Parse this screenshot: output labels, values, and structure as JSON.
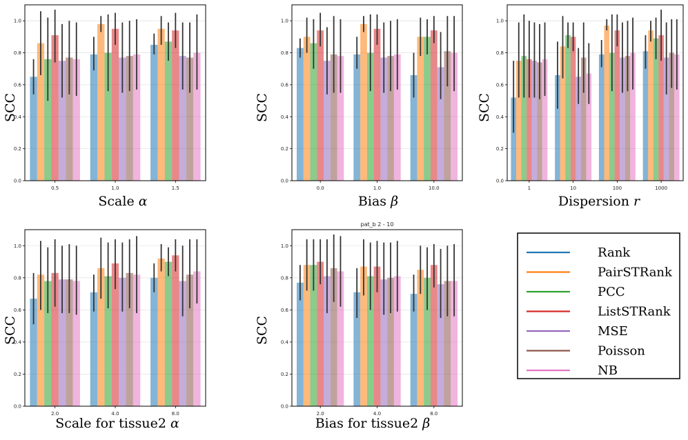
{
  "legend": [
    {
      "name": "Rank",
      "color": "#1f77b4"
    },
    {
      "name": "PairSTRank",
      "color": "#ff7f0e"
    },
    {
      "name": "PCC",
      "color": "#2ca02c"
    },
    {
      "name": "ListSTRank",
      "color": "#d62728"
    },
    {
      "name": "MSE",
      "color": "#9467bd"
    },
    {
      "name": "Poisson",
      "color": "#8c564b"
    },
    {
      "name": "NB",
      "color": "#e377c2"
    }
  ],
  "chart_data": [
    {
      "type": "bar",
      "title": "",
      "xlabel": "Scale α",
      "ylabel": "SCC",
      "ylim": [
        0,
        1.1
      ],
      "yticks": [
        "0.0",
        "0.2",
        "0.4",
        "0.6",
        "0.8",
        "1.0"
      ],
      "categories": [
        "0.5",
        "1.0",
        "1.5"
      ],
      "series": [
        {
          "name": "Rank",
          "values": [
            0.65,
            0.79,
            0.85
          ],
          "err_low": [
            0.54,
            0.69,
            0.79
          ],
          "err_high": [
            0.76,
            0.9,
            0.92
          ]
        },
        {
          "name": "PairSTRank",
          "values": [
            0.86,
            0.98,
            0.95
          ],
          "err_low": [
            0.66,
            0.93,
            0.85
          ],
          "err_high": [
            1.06,
            1.03,
            1.03
          ]
        },
        {
          "name": "PCC",
          "values": [
            0.76,
            0.8,
            0.87
          ],
          "err_low": [
            0.5,
            0.56,
            0.75
          ],
          "err_high": [
            1.02,
            1.04,
            0.99
          ]
        },
        {
          "name": "ListSTRank",
          "values": [
            0.91,
            0.95,
            0.94
          ],
          "err_low": [
            0.74,
            0.85,
            0.83
          ],
          "err_high": [
            1.07,
            1.05,
            1.05
          ]
        },
        {
          "name": "MSE",
          "values": [
            0.75,
            0.77,
            0.78
          ],
          "err_low": [
            0.52,
            0.55,
            0.57
          ],
          "err_high": [
            0.98,
            0.99,
            0.99
          ]
        },
        {
          "name": "Poisson",
          "values": [
            0.77,
            0.78,
            0.77
          ],
          "err_low": [
            0.54,
            0.56,
            0.55
          ],
          "err_high": [
            1.0,
            1.0,
            0.99
          ]
        },
        {
          "name": "NB",
          "values": [
            0.76,
            0.79,
            0.8
          ],
          "err_low": [
            0.53,
            0.57,
            0.57
          ],
          "err_high": [
            0.99,
            1.01,
            1.04
          ]
        }
      ]
    },
    {
      "type": "bar",
      "title": "",
      "xlabel": "Bias β",
      "ylabel": "SCC",
      "ylim": [
        0,
        1.1
      ],
      "yticks": [
        "0.0",
        "0.2",
        "0.4",
        "0.6",
        "0.8",
        "1.0"
      ],
      "categories": [
        "0.0",
        "1.0",
        "10.0"
      ],
      "series": [
        {
          "name": "Rank",
          "values": [
            0.83,
            0.79,
            0.66
          ],
          "err_low": [
            0.77,
            0.7,
            0.52
          ],
          "err_high": [
            0.89,
            0.9,
            0.8
          ]
        },
        {
          "name": "PairSTRank",
          "values": [
            0.9,
            0.98,
            0.9
          ],
          "err_low": [
            0.8,
            0.93,
            0.78
          ],
          "err_high": [
            1.02,
            1.03,
            1.02
          ]
        },
        {
          "name": "PCC",
          "values": [
            0.86,
            0.8,
            0.9
          ],
          "err_low": [
            0.7,
            0.56,
            0.79
          ],
          "err_high": [
            1.01,
            1.04,
            1.01
          ]
        },
        {
          "name": "ListSTRank",
          "values": [
            0.94,
            0.95,
            0.94
          ],
          "err_low": [
            0.84,
            0.85,
            0.86
          ],
          "err_high": [
            1.05,
            1.04,
            1.03
          ]
        },
        {
          "name": "MSE",
          "values": [
            0.75,
            0.77,
            0.71
          ],
          "err_low": [
            0.54,
            0.55,
            0.51
          ],
          "err_high": [
            0.96,
            0.99,
            0.93
          ]
        },
        {
          "name": "Poisson",
          "values": [
            0.79,
            0.78,
            0.81
          ],
          "err_low": [
            0.55,
            0.56,
            0.59
          ],
          "err_high": [
            1.03,
            1.0,
            1.03
          ]
        },
        {
          "name": "NB",
          "values": [
            0.78,
            0.79,
            0.8
          ],
          "err_low": [
            0.55,
            0.57,
            0.56
          ],
          "err_high": [
            1.01,
            1.01,
            1.03
          ]
        }
      ]
    },
    {
      "type": "bar",
      "title": "",
      "xlabel": "Dispersion r",
      "ylabel": "SCC",
      "ylim": [
        0,
        1.1
      ],
      "yticks": [
        "0.0",
        "0.2",
        "0.4",
        "0.6",
        "0.8",
        "1.0"
      ],
      "categories": [
        "1",
        "10",
        "100",
        "1000"
      ],
      "series": [
        {
          "name": "Rank",
          "values": [
            0.52,
            0.66,
            0.79,
            0.81
          ],
          "err_low": [
            0.3,
            0.45,
            0.71,
            0.7
          ],
          "err_high": [
            0.75,
            0.87,
            0.88,
            0.91
          ]
        },
        {
          "name": "PairSTRank",
          "values": [
            0.75,
            0.84,
            0.97,
            0.94
          ],
          "err_low": [
            0.52,
            0.64,
            0.94,
            0.87
          ],
          "err_high": [
            0.99,
            1.03,
            1.01,
            1.0
          ]
        },
        {
          "name": "PCC",
          "values": [
            0.78,
            0.91,
            0.8,
            0.89
          ],
          "err_low": [
            0.52,
            0.83,
            0.56,
            0.76
          ],
          "err_high": [
            1.04,
            0.99,
            1.04,
            1.02
          ]
        },
        {
          "name": "ListSTRank",
          "values": [
            0.76,
            0.9,
            0.94,
            0.91
          ],
          "err_low": [
            0.52,
            0.81,
            0.84,
            0.75
          ],
          "err_high": [
            1.0,
            0.99,
            1.04,
            1.07
          ]
        },
        {
          "name": "MSE",
          "values": [
            0.75,
            0.65,
            0.77,
            0.77
          ],
          "err_low": [
            0.52,
            0.48,
            0.55,
            0.54
          ],
          "err_high": [
            0.99,
            0.83,
            0.99,
            0.99
          ]
        },
        {
          "name": "Poisson",
          "values": [
            0.74,
            0.77,
            0.78,
            0.8
          ],
          "err_low": [
            0.51,
            0.55,
            0.56,
            0.58
          ],
          "err_high": [
            0.98,
            0.99,
            1.0,
            1.01
          ]
        },
        {
          "name": "NB",
          "values": [
            0.76,
            0.67,
            0.8,
            0.79
          ],
          "err_low": [
            0.53,
            0.48,
            0.57,
            0.57
          ],
          "err_high": [
            0.99,
            0.86,
            1.02,
            1.01
          ]
        }
      ]
    },
    {
      "type": "bar",
      "title": "",
      "xlabel": "Scale for tissue2 α",
      "ylabel": "SCC",
      "ylim": [
        0,
        1.1
      ],
      "yticks": [
        "0.0",
        "0.2",
        "0.4",
        "0.6",
        "0.8",
        "1.0"
      ],
      "categories": [
        "2.0",
        "4.0",
        "8.0"
      ],
      "series": [
        {
          "name": "Rank",
          "values": [
            0.67,
            0.71,
            0.8
          ],
          "err_low": [
            0.51,
            0.59,
            0.71
          ],
          "err_high": [
            0.83,
            0.82,
            0.89
          ]
        },
        {
          "name": "PairSTRank",
          "values": [
            0.82,
            0.86,
            0.92
          ],
          "err_low": [
            0.6,
            0.67,
            0.84
          ],
          "err_high": [
            1.03,
            1.05,
            1.01
          ]
        },
        {
          "name": "PCC",
          "values": [
            0.78,
            0.81,
            0.9
          ],
          "err_low": [
            0.58,
            0.61,
            0.81
          ],
          "err_high": [
            0.99,
            1.02,
            0.99
          ]
        },
        {
          "name": "ListSTRank",
          "values": [
            0.83,
            0.89,
            0.94
          ],
          "err_low": [
            0.62,
            0.73,
            0.84
          ],
          "err_high": [
            1.04,
            1.04,
            1.04
          ]
        },
        {
          "name": "MSE",
          "values": [
            0.79,
            0.8,
            0.78
          ],
          "err_low": [
            0.58,
            0.59,
            0.56
          ],
          "err_high": [
            1.0,
            1.02,
            1.0
          ]
        },
        {
          "name": "Poisson",
          "values": [
            0.79,
            0.83,
            0.82
          ],
          "err_low": [
            0.58,
            0.61,
            0.61
          ],
          "err_high": [
            1.01,
            1.04,
            1.04
          ]
        },
        {
          "name": "NB",
          "values": [
            0.78,
            0.82,
            0.84
          ],
          "err_low": [
            0.57,
            0.58,
            0.64
          ],
          "err_high": [
            1.0,
            1.06,
            1.04
          ]
        }
      ]
    },
    {
      "type": "bar",
      "title": "pat_b 2 - 10",
      "xlabel": "Bias for tissue2 β",
      "ylabel": "SCC",
      "ylim": [
        0,
        1.1
      ],
      "yticks": [
        "0.0",
        "0.2",
        "0.4",
        "0.6",
        "0.8",
        "1.0"
      ],
      "categories": [
        "2.0",
        "4.0",
        "8.0"
      ],
      "series": [
        {
          "name": "Rank",
          "values": [
            0.77,
            0.71,
            0.7
          ],
          "err_low": [
            0.66,
            0.55,
            0.59
          ],
          "err_high": [
            0.88,
            0.86,
            0.82
          ]
        },
        {
          "name": "PairSTRank",
          "values": [
            0.88,
            0.87,
            0.85
          ],
          "err_low": [
            0.72,
            0.69,
            0.7
          ],
          "err_high": [
            1.04,
            1.04,
            1.0
          ]
        },
        {
          "name": "PCC",
          "values": [
            0.88,
            0.81,
            0.8
          ],
          "err_low": [
            0.72,
            0.6,
            0.6
          ],
          "err_high": [
            1.04,
            1.02,
            0.99
          ]
        },
        {
          "name": "ListSTRank",
          "values": [
            0.9,
            0.87,
            0.88
          ],
          "err_low": [
            0.76,
            0.71,
            0.74
          ],
          "err_high": [
            1.04,
            1.03,
            1.01
          ]
        },
        {
          "name": "MSE",
          "values": [
            0.81,
            0.79,
            0.76
          ],
          "err_low": [
            0.58,
            0.57,
            0.55
          ],
          "err_high": [
            1.04,
            1.02,
            0.98
          ]
        },
        {
          "name": "Poisson",
          "values": [
            0.86,
            0.8,
            0.78
          ],
          "err_low": [
            0.65,
            0.58,
            0.56
          ],
          "err_high": [
            1.07,
            1.02,
            1.0
          ]
        },
        {
          "name": "NB",
          "values": [
            0.84,
            0.81,
            0.78
          ],
          "err_low": [
            0.62,
            0.59,
            0.56
          ],
          "err_high": [
            1.06,
            1.03,
            1.01
          ]
        }
      ]
    }
  ]
}
